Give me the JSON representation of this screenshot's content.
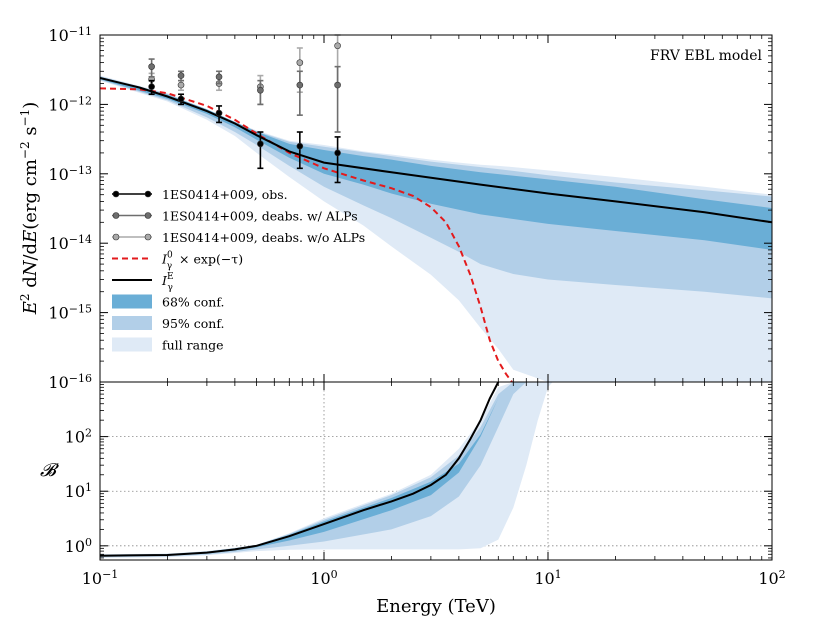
{
  "chart_data": [
    {
      "type": "line",
      "panel": "top",
      "annotation": "FRV EBL model",
      "xscale": "log",
      "yscale": "log",
      "xlim": [
        0.1,
        100
      ],
      "ylim": [
        1e-16,
        1e-11
      ],
      "ylabel_parts": {
        "E": "E",
        "sup2": "2",
        "d1": " d",
        "N": "N",
        "slash": "/d",
        "E2": "E",
        "units": "(erg cm",
        "expm2": "−2",
        "s": " s",
        "expm1": "−1",
        "close": ")"
      },
      "yticks": [
        {
          "exp": -11,
          "base": "10",
          "sup": "−11"
        },
        {
          "exp": -12,
          "base": "10",
          "sup": "−12"
        },
        {
          "exp": -13,
          "base": "10",
          "sup": "−13"
        },
        {
          "exp": -14,
          "base": "10",
          "sup": "−14"
        },
        {
          "exp": -15,
          "base": "10",
          "sup": "−15"
        },
        {
          "exp": -16,
          "base": "10",
          "sup": "−16"
        }
      ],
      "series_points": [
        {
          "name": "1ES0414+009, obs.",
          "color": "#000000",
          "x": [
            0.17,
            0.23,
            0.34,
            0.52,
            0.78,
            1.15
          ],
          "y": [
            1.8e-12,
            1.2e-12,
            7.5e-13,
            2.7e-13,
            2.5e-13,
            2e-13
          ],
          "ylo": [
            1.4e-12,
            1e-12,
            5.5e-13,
            1.2e-13,
            1.2e-13,
            7.5e-14
          ],
          "yhi": [
            2.2e-12,
            1.4e-12,
            9.5e-13,
            4e-13,
            4e-13,
            3.4e-13
          ]
        },
        {
          "name": "1ES0414+009, deabs. w/ ALPs",
          "color": "#6e6e6e",
          "x": [
            0.17,
            0.23,
            0.34,
            0.52,
            0.78,
            1.15
          ],
          "y": [
            3.5e-12,
            2.6e-12,
            2.5e-12,
            1.6e-12,
            1.9e-12,
            1.9e-12
          ],
          "ylo": [
            2.5e-12,
            2.2e-12,
            2e-12,
            1e-12,
            7e-13,
            4e-13
          ],
          "yhi": [
            4.5e-12,
            3e-12,
            3e-12,
            2.2e-12,
            3e-12,
            3.5e-12
          ]
        },
        {
          "name": "1ES0414+009, deabs. w/o ALPs",
          "color": "#aaaaaa",
          "x": [
            0.17,
            0.23,
            0.34,
            0.52,
            0.78,
            1.15
          ],
          "y": [
            2.3e-12,
            1.9e-12,
            2e-12,
            1.8e-12,
            4e-12,
            7e-12
          ],
          "ylo": [
            1.8e-12,
            1.6e-12,
            1.6e-12,
            1e-12,
            1.5e-12,
            2e-12
          ],
          "yhi": [
            2.8e-12,
            2.2e-12,
            2.4e-12,
            2.6e-12,
            6.5e-12,
            1e-11
          ]
        }
      ],
      "intrinsic_dashed": {
        "name": "I_γ^0 × exp(−τ)",
        "color": "#e31a1c",
        "x": [
          0.1,
          0.15,
          0.2,
          0.3,
          0.4,
          0.5,
          0.7,
          1.0,
          1.5,
          2.0,
          2.5,
          3.0,
          3.5,
          4.0,
          4.5,
          5.0,
          5.5,
          6.0,
          6.5,
          6.9
        ],
        "y": [
          1.7e-12,
          1.65e-12,
          1.45e-12,
          9.5e-13,
          6e-13,
          3.8e-13,
          2e-13,
          1.2e-13,
          8e-14,
          6.2e-14,
          4.8e-14,
          3.3e-14,
          2e-14,
          9e-15,
          3.5e-15,
          1.2e-15,
          4e-16,
          2e-16,
          1.3e-16,
          1e-16
        ]
      },
      "model_line": {
        "name": "I_γ^E",
        "color": "#000000",
        "x": [
          0.1,
          0.15,
          0.2,
          0.3,
          0.4,
          0.5,
          0.7,
          1.0,
          2.0,
          5.0,
          10,
          20,
          50,
          100
        ],
        "y": [
          2.4e-12,
          1.75e-12,
          1.3e-12,
          8e-13,
          5.3e-13,
          3.6e-13,
          2.1e-13,
          1.45e-13,
          1.05e-13,
          7e-14,
          5.2e-14,
          4e-14,
          2.8e-14,
          2e-14
        ]
      },
      "bands": [
        {
          "name": "full range",
          "color": "#dfeaf6",
          "x": [
            0.1,
            0.2,
            0.3,
            0.4,
            0.5,
            0.7,
            1.0,
            1.5,
            2.0,
            3.0,
            4.0,
            5.0,
            6.0,
            7.0,
            10,
            20,
            50,
            100
          ],
          "lo": [
            2.2e-12,
            1.1e-12,
            6e-13,
            3.5e-13,
            2e-13,
            9e-14,
            4e-14,
            1.8e-14,
            9e-15,
            3.5e-15,
            1.5e-15,
            6e-16,
            3e-16,
            1.5e-16,
            1e-16,
            1e-16,
            1e-16,
            1e-16
          ],
          "hi": [
            2.6e-12,
            1.45e-12,
            8.5e-13,
            5.6e-13,
            4.2e-13,
            3e-13,
            2.6e-13,
            2.1e-13,
            1.9e-13,
            1.6e-13,
            1.45e-13,
            1.35e-13,
            1.3e-13,
            1.25e-13,
            1.12e-13,
            9e-14,
            6.5e-14,
            5e-14
          ]
        },
        {
          "name": "95% conf.",
          "color": "#b2cfe8",
          "x": [
            0.1,
            0.2,
            0.3,
            0.4,
            0.5,
            0.7,
            1.0,
            1.5,
            2.0,
            3.0,
            4.0,
            5.0,
            7.0,
            10,
            20,
            50,
            100
          ],
          "lo": [
            2.25e-12,
            1.15e-12,
            6.5e-13,
            4e-13,
            2.6e-13,
            1.3e-13,
            6.5e-14,
            3.5e-14,
            2.3e-14,
            1.2e-14,
            7.5e-15,
            5e-15,
            3.6e-15,
            3e-15,
            2.5e-15,
            2e-15,
            1.6e-15
          ],
          "hi": [
            2.55e-12,
            1.42e-12,
            8.3e-13,
            5.5e-13,
            4.1e-13,
            2.9e-13,
            2.45e-13,
            2.05e-13,
            1.8e-13,
            1.5e-13,
            1.35e-13,
            1.25e-13,
            1.1e-13,
            9.5e-14,
            7.5e-14,
            5.8e-14,
            4.7e-14
          ]
        },
        {
          "name": "68% conf.",
          "color": "#6aaed6",
          "x": [
            0.1,
            0.2,
            0.3,
            0.4,
            0.5,
            0.7,
            1.0,
            1.5,
            2.0,
            3.0,
            5.0,
            10,
            20,
            50,
            100
          ],
          "lo": [
            2.3e-12,
            1.2e-12,
            7.3e-13,
            4.7e-13,
            3.1e-13,
            1.7e-13,
            1e-13,
            7e-14,
            5.2e-14,
            3.7e-14,
            2.6e-14,
            1.9e-14,
            1.5e-14,
            1.1e-14,
            8e-15
          ],
          "hi": [
            2.5e-12,
            1.38e-12,
            8.5e-13,
            5.6e-13,
            4.05e-13,
            2.7e-13,
            2.2e-13,
            1.8e-13,
            1.6e-13,
            1.3e-13,
            1.05e-13,
            8.3e-14,
            6.5e-14,
            4.3e-14,
            3.2e-14
          ]
        }
      ],
      "legend": {
        "placement": "lower-left",
        "entries": [
          {
            "label": "1ES0414+009, obs.",
            "kind": "errpoint",
            "color": "#000000"
          },
          {
            "label": "1ES0414+009, deabs. w/ ALPs",
            "kind": "errpoint",
            "color": "#6e6e6e"
          },
          {
            "label": "1ES0414+009, deabs. w/o ALPs",
            "kind": "errpoint",
            "color": "#aaaaaa"
          },
          {
            "label_main": "I",
            "label_sub": "γ",
            "label_sup": "0",
            "label_rest": " × exp(−τ)",
            "kind": "dashed",
            "color": "#e31a1c"
          },
          {
            "label_main": "I",
            "label_sub": "γ",
            "label_sup": "E",
            "label_rest": "",
            "kind": "line",
            "color": "#000000"
          },
          {
            "label": "68% conf.",
            "kind": "patch",
            "color": "#6aaed6"
          },
          {
            "label": "95% conf.",
            "kind": "patch",
            "color": "#b2cfe8"
          },
          {
            "label": "full range",
            "kind": "patch",
            "color": "#dfeaf6"
          }
        ]
      }
    },
    {
      "type": "line",
      "panel": "bottom",
      "ylabel": "𝓑",
      "xlabel": "Energy (TeV)",
      "xscale": "log",
      "yscale": "log",
      "xlim": [
        0.1,
        100
      ],
      "ylim": [
        0.55,
        1000
      ],
      "grid": true,
      "xticks": [
        {
          "exp": -1,
          "base": "10",
          "sup": "−1"
        },
        {
          "exp": 0,
          "base": "10",
          "sup": "0"
        },
        {
          "exp": 1,
          "base": "10",
          "sup": "1"
        },
        {
          "exp": 2,
          "base": "10",
          "sup": "2"
        }
      ],
      "yticks": [
        {
          "exp": 0,
          "base": "10",
          "sup": "0"
        },
        {
          "exp": 1,
          "base": "10",
          "sup": "1"
        },
        {
          "exp": 2,
          "base": "10",
          "sup": "2"
        }
      ],
      "model_line": {
        "color": "#000000",
        "x": [
          0.1,
          0.2,
          0.3,
          0.4,
          0.5,
          0.7,
          1.0,
          1.5,
          2.0,
          2.5,
          3.0,
          3.5,
          4.0,
          4.5,
          5.0,
          5.5,
          6.0
        ],
        "y": [
          0.66,
          0.68,
          0.75,
          0.86,
          1.0,
          1.5,
          2.5,
          4.5,
          6.5,
          9.0,
          13,
          20,
          40,
          90,
          200,
          500,
          1000
        ]
      },
      "bands": [
        {
          "name": "full range",
          "color": "#dfeaf6",
          "x": [
            0.1,
            0.2,
            0.3,
            0.4,
            0.5,
            0.7,
            1.0,
            2.0,
            3.0,
            4.0,
            5.0,
            6.0,
            7.0,
            8.0,
            9.0,
            10.0,
            10.5
          ],
          "lo": [
            0.6,
            0.62,
            0.67,
            0.74,
            0.8,
            0.85,
            0.86,
            0.86,
            0.86,
            0.86,
            0.9,
            1.3,
            5,
            30,
            200,
            800,
            1000
          ],
          "hi": [
            0.7,
            0.72,
            0.8,
            0.92,
            1.05,
            1.7,
            3.2,
            9,
            20,
            60,
            200,
            800,
            1000,
            1000,
            1000,
            1000,
            1000
          ]
        },
        {
          "name": "95% conf.",
          "color": "#b2cfe8",
          "x": [
            0.1,
            0.2,
            0.3,
            0.4,
            0.5,
            0.7,
            1.0,
            2.0,
            3.0,
            4.0,
            5.0,
            6.0,
            7.0,
            8.0
          ],
          "lo": [
            0.62,
            0.64,
            0.69,
            0.77,
            0.86,
            1.0,
            1.2,
            2.0,
            3.5,
            8,
            30,
            150,
            600,
            1000
          ],
          "hi": [
            0.69,
            0.71,
            0.79,
            0.9,
            1.04,
            1.65,
            3.0,
            8.5,
            18,
            45,
            150,
            600,
            1000,
            1000
          ]
        },
        {
          "name": "68% conf.",
          "color": "#6aaed6",
          "x": [
            0.1,
            0.2,
            0.3,
            0.4,
            0.5,
            0.7,
            1.0,
            2.0,
            3.0,
            4.0,
            5.0,
            6.0,
            6.5
          ],
          "lo": [
            0.64,
            0.66,
            0.72,
            0.82,
            0.94,
            1.25,
            1.8,
            4.5,
            8.5,
            22,
            100,
            500,
            1000
          ],
          "hi": [
            0.68,
            0.7,
            0.78,
            0.9,
            1.03,
            1.6,
            2.8,
            7.5,
            15,
            32,
            110,
            500,
            1000
          ]
        }
      ]
    }
  ]
}
